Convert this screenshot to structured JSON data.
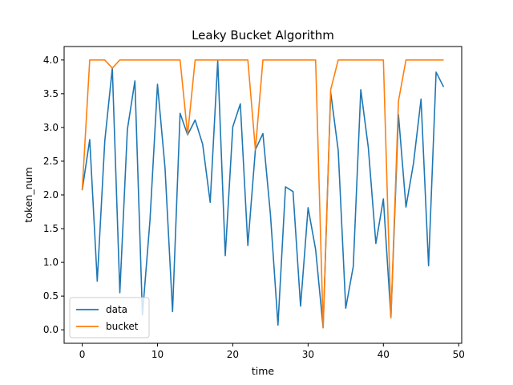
{
  "chart_data": {
    "type": "line",
    "title": "Leaky Bucket Algorithm",
    "xlabel": "time",
    "ylabel": "token_num",
    "xlim": [
      -2.4,
      50.4
    ],
    "ylim": [
      -0.2,
      4.2
    ],
    "xticks": [
      0,
      10,
      20,
      30,
      40,
      50
    ],
    "yticks": [
      0.0,
      0.5,
      1.0,
      1.5,
      2.0,
      2.5,
      3.0,
      3.5,
      4.0
    ],
    "ytick_labels": [
      "0.0",
      "0.5",
      "1.0",
      "1.5",
      "2.0",
      "2.5",
      "3.0",
      "3.5",
      "4.0"
    ],
    "grid": false,
    "legend": "lower-left",
    "series": [
      {
        "name": "data",
        "color": "#1f77b4",
        "x": [
          0,
          1,
          2,
          3,
          4,
          5,
          6,
          7,
          8,
          9,
          10,
          11,
          12,
          13,
          14,
          15,
          16,
          17,
          18,
          19,
          20,
          21,
          22,
          23,
          24,
          25,
          26,
          27,
          28,
          29,
          30,
          31,
          32,
          33,
          34,
          35,
          36,
          37,
          38,
          39,
          40,
          41,
          42,
          43,
          44,
          45,
          46,
          47,
          48
        ],
        "values": [
          2.07,
          2.82,
          0.72,
          2.8,
          3.88,
          0.55,
          2.97,
          3.69,
          0.22,
          1.62,
          3.64,
          2.4,
          0.27,
          3.21,
          2.89,
          3.11,
          2.75,
          1.89,
          3.99,
          1.1,
          3.01,
          3.35,
          1.25,
          2.67,
          2.91,
          1.71,
          0.07,
          2.12,
          2.05,
          0.35,
          1.81,
          1.19,
          0.03,
          3.52,
          2.66,
          0.32,
          0.94,
          3.56,
          2.7,
          1.28,
          1.94,
          0.18,
          3.19,
          1.82,
          2.47,
          3.42,
          0.95,
          3.82,
          3.6
        ]
      },
      {
        "name": "bucket",
        "color": "#ff7f0e",
        "x": [
          0,
          1,
          2,
          3,
          4,
          5,
          6,
          7,
          8,
          9,
          10,
          11,
          12,
          13,
          14,
          15,
          16,
          17,
          18,
          19,
          20,
          21,
          22,
          23,
          24,
          25,
          26,
          27,
          28,
          29,
          30,
          31,
          32,
          33,
          34,
          35,
          36,
          37,
          38,
          39,
          40,
          41,
          42,
          43,
          44,
          45,
          46,
          47,
          48
        ],
        "values": [
          2.07,
          4.0,
          4.0,
          4.0,
          3.88,
          4.0,
          4.0,
          4.0,
          4.0,
          4.0,
          4.0,
          4.0,
          4.0,
          4.0,
          2.89,
          4.0,
          4.0,
          4.0,
          4.0,
          4.0,
          4.0,
          4.0,
          4.0,
          2.67,
          4.0,
          4.0,
          4.0,
          4.0,
          4.0,
          4.0,
          4.0,
          4.0,
          0.03,
          3.56,
          4.0,
          4.0,
          4.0,
          4.0,
          4.0,
          4.0,
          4.0,
          0.18,
          3.39,
          4.0,
          4.0,
          4.0,
          4.0,
          4.0,
          4.0
        ]
      }
    ]
  }
}
